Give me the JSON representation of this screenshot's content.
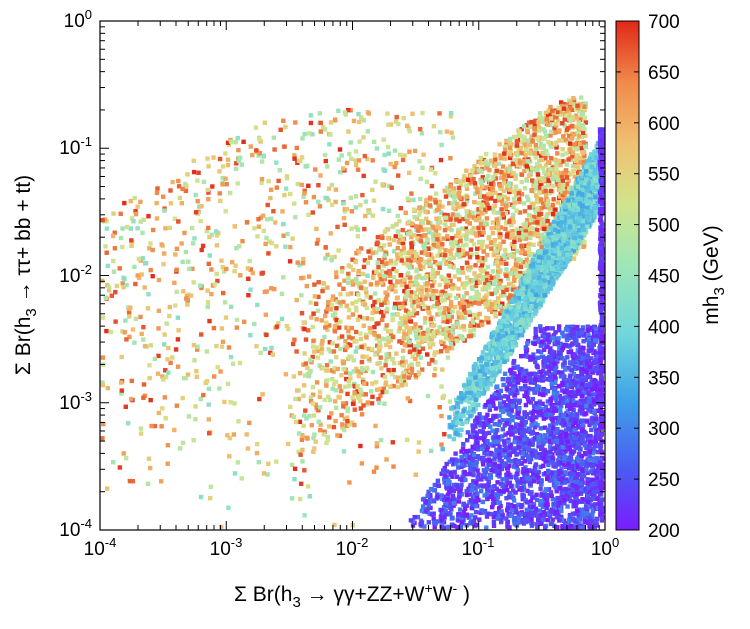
{
  "chart_data": {
    "type": "scatter",
    "title": "",
    "x_scale": "log",
    "y_scale": "log",
    "xlim": [
      0.0001,
      1
    ],
    "ylim": [
      0.0001,
      1
    ],
    "x_ticks": [
      {
        "base": "10",
        "exp": "-4"
      },
      {
        "base": "10",
        "exp": "-3"
      },
      {
        "base": "10",
        "exp": "-2"
      },
      {
        "base": "10",
        "exp": "-1"
      },
      {
        "base": "10",
        "exp": "0"
      }
    ],
    "y_ticks": [
      {
        "base": "10",
        "exp": "-4"
      },
      {
        "base": "10",
        "exp": "-3"
      },
      {
        "base": "10",
        "exp": "-2"
      },
      {
        "base": "10",
        "exp": "-1"
      },
      {
        "base": "10",
        "exp": "0"
      }
    ],
    "xlabel": {
      "prefix": "Σ Br(h",
      "sub": "3",
      "mid": " → γγ+ZZ+W",
      "sup1": "+",
      "mid2": "W",
      "sup2": "-",
      "suffix": " )"
    },
    "ylabel": {
      "prefix": "Σ Br(h",
      "sub": "3",
      "suffix": " → ττ+ bb + tt)"
    },
    "colorbar": {
      "range": [
        200,
        700
      ],
      "ticks": [
        "200",
        "250",
        "300",
        "350",
        "400",
        "450",
        "500",
        "550",
        "600",
        "650",
        "700"
      ],
      "label": {
        "prefix": "mh",
        "sub": "3",
        "suffix": " (GeV)"
      },
      "colors": [
        "#7a1cff",
        "#4a5cf2",
        "#3ea0e8",
        "#6fd6dc",
        "#9ee6b8",
        "#d2e48c",
        "#f0c070",
        "#f08a4a",
        "#e02818"
      ]
    },
    "series": [
      {
        "name": "parameter-scan points (colored by mh3)",
        "description_clusters": [
          {
            "region": "sparse spread",
            "x_log": [
              -4,
              -1.2
            ],
            "y_log": [
              -4,
              -0.7
            ],
            "mh3_range": [
              420,
              700
            ],
            "count": 900
          },
          {
            "region": "dense diagonal band",
            "x_log": [
              -2.5,
              -0.15
            ],
            "y_log_offset": [
              -0.9,
              0.45
            ],
            "mh3_range": [
              450,
              700
            ],
            "count": 2600
          },
          {
            "region": "cyan wedge",
            "x_log": [
              -1.3,
              -0.02
            ],
            "y_log": [
              -3.5,
              -0.85
            ],
            "mh3_range": [
              330,
              430
            ],
            "count": 2200
          },
          {
            "region": "purple-blue lower-right",
            "x_log": [
              -1.6,
              -0.02
            ],
            "y_log": [
              -4,
              -2.4
            ],
            "mh3_range": [
              200,
              300
            ],
            "count": 2600
          },
          {
            "region": "purple right edge column",
            "x_log": [
              -0.04,
              -0.005
            ],
            "y_log": [
              -4,
              -0.85
            ],
            "mh3_range": [
              200,
              240
            ],
            "count": 500
          }
        ]
      }
    ]
  }
}
